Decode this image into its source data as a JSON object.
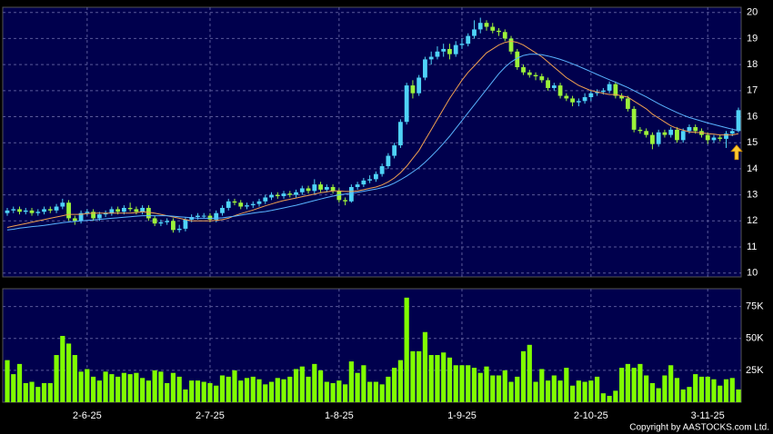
{
  "chart_data": {
    "type": "candlestick",
    "categories": [
      null,
      null,
      null,
      null,
      null,
      null,
      null,
      null,
      null,
      null,
      null,
      null,
      null,
      "2-6-25",
      null,
      null,
      null,
      null,
      null,
      null,
      null,
      null,
      null,
      null,
      null,
      null,
      null,
      null,
      null,
      null,
      null,
      null,
      null,
      "2-7-25",
      null,
      null,
      null,
      null,
      null,
      null,
      null,
      null,
      null,
      null,
      null,
      null,
      null,
      null,
      null,
      null,
      null,
      null,
      null,
      null,
      "1-8-25",
      null,
      null,
      null,
      null,
      null,
      null,
      null,
      null,
      null,
      null,
      null,
      null,
      null,
      null,
      null,
      null,
      null,
      null,
      null,
      "1-9-25",
      null,
      null,
      null,
      null,
      null,
      null,
      null,
      null,
      null,
      null,
      null,
      null,
      null,
      null,
      null,
      null,
      null,
      null,
      null,
      null,
      "2-10-25",
      null,
      null,
      null,
      null,
      null,
      null,
      null,
      null,
      null,
      null,
      null,
      null,
      null,
      null,
      null,
      null,
      null,
      null,
      "3-11-25",
      null,
      null,
      null,
      null,
      null
    ],
    "open": [
      12.3,
      12.4,
      12.45,
      12.35,
      12.4,
      12.3,
      12.35,
      12.45,
      12.4,
      12.55,
      12.7,
      12.1,
      12.0,
      12.3,
      12.35,
      12.1,
      12.25,
      12.3,
      12.45,
      12.35,
      12.5,
      12.45,
      12.35,
      12.5,
      12.1,
      11.9,
      11.95,
      12.0,
      11.65,
      11.7,
      12.05,
      12.15,
      12.2,
      12.2,
      12.05,
      12.3,
      12.5,
      12.75,
      12.7,
      12.55,
      12.6,
      12.65,
      12.75,
      12.9,
      13.0,
      12.95,
      13.05,
      13.0,
      13.1,
      13.25,
      13.15,
      13.4,
      13.2,
      13.3,
      13.15,
      12.8,
      12.75,
      13.3,
      13.4,
      13.55,
      13.6,
      13.8,
      14.1,
      14.5,
      14.9,
      15.8,
      17.2,
      16.9,
      17.5,
      18.2,
      18.3,
      18.5,
      18.6,
      18.4,
      18.75,
      18.8,
      19.1,
      19.35,
      19.6,
      19.45,
      19.3,
      19.25,
      19.0,
      18.5,
      17.9,
      17.7,
      17.6,
      17.55,
      17.4,
      17.1,
      17.2,
      16.8,
      16.7,
      16.55,
      16.6,
      16.75,
      16.9,
      16.95,
      17.0,
      17.25,
      16.8,
      16.7,
      16.3,
      15.5,
      15.45,
      15.3,
      14.95,
      15.4,
      15.3,
      15.5,
      15.1,
      15.45,
      15.6,
      15.45,
      15.3,
      15.1,
      15.2,
      15.15,
      15.35,
      15.45
    ],
    "high": [
      12.5,
      12.55,
      12.55,
      12.5,
      12.5,
      12.45,
      12.55,
      12.55,
      12.65,
      12.85,
      12.8,
      12.2,
      12.4,
      12.45,
      12.45,
      12.35,
      12.4,
      12.55,
      12.55,
      12.6,
      12.7,
      12.55,
      12.6,
      12.6,
      12.2,
      12.05,
      12.1,
      12.1,
      11.85,
      12.15,
      12.25,
      12.3,
      12.3,
      12.3,
      12.4,
      12.6,
      12.85,
      12.85,
      12.8,
      12.7,
      12.75,
      12.85,
      13.0,
      13.1,
      13.1,
      13.15,
      13.15,
      13.2,
      13.35,
      13.35,
      13.6,
      13.5,
      13.4,
      13.4,
      13.25,
      12.9,
      13.4,
      13.5,
      13.65,
      13.75,
      13.9,
      14.2,
      14.6,
      15.0,
      15.9,
      17.3,
      17.4,
      17.6,
      18.3,
      18.5,
      18.7,
      18.8,
      18.8,
      18.9,
      19.0,
      19.2,
      19.7,
      19.8,
      19.7,
      19.6,
      19.4,
      19.35,
      19.1,
      18.6,
      18.0,
      17.8,
      17.7,
      17.65,
      17.5,
      17.3,
      17.3,
      16.9,
      16.8,
      16.7,
      16.9,
      17.0,
      17.05,
      17.1,
      17.35,
      17.35,
      16.9,
      16.8,
      16.4,
      15.6,
      15.55,
      15.4,
      15.5,
      15.5,
      15.6,
      15.6,
      15.55,
      15.7,
      15.7,
      15.55,
      15.4,
      15.3,
      15.3,
      15.45,
      15.55,
      16.35
    ],
    "low": [
      12.2,
      12.3,
      12.25,
      12.25,
      12.2,
      12.2,
      12.25,
      12.3,
      12.3,
      12.45,
      12.0,
      11.85,
      11.9,
      12.2,
      12.0,
      12.0,
      12.15,
      12.2,
      12.25,
      12.25,
      12.35,
      12.25,
      12.25,
      12.0,
      11.8,
      11.8,
      11.85,
      11.55,
      11.55,
      11.6,
      11.95,
      12.05,
      12.1,
      11.95,
      11.95,
      12.2,
      12.4,
      12.6,
      12.45,
      12.45,
      12.5,
      12.55,
      12.65,
      12.8,
      12.85,
      12.85,
      12.9,
      12.9,
      13.0,
      13.05,
      13.05,
      13.1,
      13.1,
      13.05,
      12.7,
      12.6,
      12.7,
      13.2,
      13.3,
      13.45,
      13.5,
      13.7,
      14.0,
      14.4,
      14.8,
      15.7,
      16.7,
      16.8,
      17.4,
      18.0,
      18.2,
      18.3,
      18.2,
      18.3,
      18.6,
      18.7,
      19.0,
      19.2,
      19.3,
      19.2,
      19.1,
      18.9,
      18.4,
      17.8,
      17.6,
      17.5,
      17.4,
      17.3,
      17.0,
      17.0,
      16.7,
      16.6,
      16.4,
      16.4,
      16.5,
      16.6,
      16.8,
      16.85,
      16.9,
      16.7,
      16.6,
      16.2,
      15.4,
      15.35,
      15.2,
      14.75,
      14.85,
      15.2,
      15.2,
      15.0,
      15.0,
      15.35,
      15.35,
      15.2,
      14.95,
      15.0,
      15.05,
      14.8,
      15.25,
      15.4
    ],
    "close": [
      12.4,
      12.45,
      12.35,
      12.4,
      12.3,
      12.35,
      12.45,
      12.4,
      12.55,
      12.7,
      12.1,
      12.0,
      12.3,
      12.35,
      12.1,
      12.25,
      12.3,
      12.45,
      12.35,
      12.5,
      12.45,
      12.35,
      12.5,
      12.1,
      11.9,
      11.95,
      12.0,
      11.65,
      11.7,
      12.05,
      12.15,
      12.2,
      12.2,
      12.05,
      12.3,
      12.5,
      12.75,
      12.7,
      12.55,
      12.6,
      12.65,
      12.75,
      12.9,
      13.0,
      12.95,
      13.05,
      13.0,
      13.1,
      13.25,
      13.15,
      13.4,
      13.2,
      13.3,
      13.15,
      12.8,
      12.75,
      13.3,
      13.4,
      13.55,
      13.6,
      13.8,
      14.1,
      14.5,
      14.9,
      15.8,
      17.2,
      16.9,
      17.5,
      18.2,
      18.3,
      18.5,
      18.6,
      18.4,
      18.75,
      18.8,
      19.1,
      19.35,
      19.6,
      19.45,
      19.3,
      19.25,
      19.0,
      18.5,
      17.9,
      17.7,
      17.6,
      17.55,
      17.4,
      17.1,
      17.2,
      16.8,
      16.7,
      16.55,
      16.6,
      16.75,
      16.9,
      16.95,
      17.0,
      17.25,
      16.8,
      16.7,
      16.3,
      15.5,
      15.45,
      15.3,
      14.95,
      15.4,
      15.3,
      15.5,
      15.1,
      15.45,
      15.6,
      15.45,
      15.3,
      15.1,
      15.2,
      15.15,
      15.35,
      15.45,
      16.25
    ],
    "up_color": "#4fd3f7",
    "down_color": "#9cf23a",
    "lines": [
      {
        "color": "#f0a050",
        "values": [
          11.75,
          11.8,
          11.85,
          11.9,
          11.95,
          12.0,
          12.05,
          12.1,
          12.15,
          12.2,
          12.25,
          12.25,
          12.25,
          12.28,
          12.3,
          12.3,
          12.3,
          12.3,
          12.3,
          12.3,
          12.3,
          12.32,
          12.35,
          12.33,
          12.3,
          12.25,
          12.2,
          12.15,
          12.1,
          12.05,
          12.0,
          12.0,
          12.0,
          12.0,
          12.02,
          12.05,
          12.1,
          12.2,
          12.28,
          12.35,
          12.42,
          12.5,
          12.58,
          12.65,
          12.72,
          12.78,
          12.83,
          12.88,
          12.93,
          12.98,
          13.03,
          13.08,
          13.12,
          13.15,
          13.15,
          13.13,
          13.13,
          13.15,
          13.2,
          13.25,
          13.3,
          13.38,
          13.5,
          13.65,
          13.85,
          14.1,
          14.4,
          14.7,
          15.1,
          15.5,
          15.9,
          16.3,
          16.7,
          17.05,
          17.4,
          17.7,
          17.95,
          18.2,
          18.45,
          18.6,
          18.75,
          18.85,
          18.9,
          18.85,
          18.75,
          18.6,
          18.45,
          18.3,
          18.1,
          17.9,
          17.7,
          17.5,
          17.35,
          17.2,
          17.1,
          17.0,
          16.95,
          16.9,
          16.85,
          16.85,
          16.8,
          16.75,
          16.6,
          16.45,
          16.3,
          16.1,
          15.95,
          15.8,
          15.65,
          15.55,
          15.48,
          15.42,
          15.4,
          15.38,
          15.35,
          15.33,
          15.3,
          15.3,
          15.3,
          15.35
        ]
      },
      {
        "color": "#5ab4ff",
        "values": [
          11.65,
          11.68,
          11.72,
          11.75,
          11.78,
          11.8,
          11.83,
          11.86,
          11.9,
          11.93,
          11.96,
          11.98,
          12.0,
          12.02,
          12.04,
          12.06,
          12.08,
          12.1,
          12.12,
          12.14,
          12.16,
          12.18,
          12.2,
          12.2,
          12.2,
          12.2,
          12.2,
          12.18,
          12.16,
          12.14,
          12.12,
          12.1,
          12.1,
          12.1,
          12.1,
          12.12,
          12.15,
          12.18,
          12.22,
          12.26,
          12.3,
          12.33,
          12.36,
          12.4,
          12.45,
          12.5,
          12.55,
          12.6,
          12.66,
          12.72,
          12.78,
          12.84,
          12.9,
          12.95,
          13.0,
          13.03,
          13.06,
          13.1,
          13.14,
          13.18,
          13.22,
          13.28,
          13.35,
          13.45,
          13.58,
          13.72,
          13.88,
          14.05,
          14.25,
          14.48,
          14.72,
          14.98,
          15.25,
          15.55,
          15.85,
          16.15,
          16.45,
          16.75,
          17.05,
          17.35,
          17.65,
          17.9,
          18.1,
          18.25,
          18.35,
          18.4,
          18.4,
          18.38,
          18.33,
          18.27,
          18.2,
          18.12,
          18.03,
          17.93,
          17.83,
          17.73,
          17.62,
          17.52,
          17.42,
          17.32,
          17.22,
          17.12,
          17.0,
          16.88,
          16.76,
          16.63,
          16.5,
          16.38,
          16.27,
          16.16,
          16.06,
          15.97,
          15.9,
          15.83,
          15.76,
          15.7,
          15.64,
          15.58,
          15.52,
          15.47
        ]
      }
    ],
    "ylim": [
      9.85,
      20.2
    ],
    "yticks": [
      10,
      11,
      12,
      13,
      14,
      15,
      16,
      17,
      18,
      19,
      20
    ],
    "grid": true,
    "volume": {
      "color": "#80ff00",
      "ylim": [
        0,
        89000
      ],
      "yticks": [
        {
          "value": 25000,
          "label": "25K"
        },
        {
          "value": 50000,
          "label": "50K"
        },
        {
          "value": 75000,
          "label": "75K"
        }
      ],
      "values": [
        33000,
        22000,
        30000,
        15000,
        16000,
        12000,
        15000,
        15000,
        37000,
        52000,
        46000,
        37000,
        24000,
        26000,
        20000,
        17000,
        24000,
        22000,
        20000,
        23000,
        22000,
        23000,
        19000,
        17000,
        25000,
        24000,
        15000,
        23000,
        20000,
        10000,
        17000,
        17000,
        16000,
        15000,
        13000,
        21000,
        20000,
        25000,
        17000,
        19000,
        20000,
        18000,
        14000,
        16000,
        19000,
        18000,
        20000,
        26000,
        28000,
        20000,
        30000,
        25000,
        16000,
        15000,
        17000,
        14000,
        32000,
        23000,
        29000,
        16000,
        16000,
        14000,
        20000,
        27000,
        33000,
        82000,
        40000,
        40000,
        55000,
        37000,
        37000,
        39000,
        35000,
        29000,
        29000,
        29000,
        27000,
        23000,
        28000,
        21000,
        21000,
        25000,
        16000,
        20000,
        40000,
        45000,
        16000,
        26000,
        17000,
        21000,
        17000,
        27000,
        13000,
        17000,
        16000,
        17000,
        20000,
        7000,
        5000,
        9000,
        27000,
        30000,
        27000,
        30000,
        21000,
        15000,
        11000,
        21000,
        29000,
        19000,
        10000,
        12000,
        22000,
        20000,
        20000,
        18000,
        13000,
        18000,
        19000,
        10000
      ]
    },
    "annotation": "Copyright by AASTOCKS.com Ltd."
  }
}
